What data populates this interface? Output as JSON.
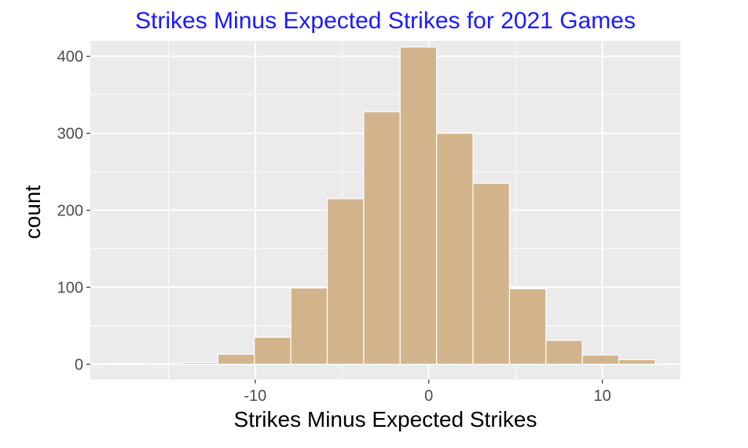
{
  "chart_data": {
    "type": "bar",
    "title": "Strikes Minus Expected Strikes for 2021 Games",
    "xlabel": "Strikes Minus Expected Strikes",
    "ylabel": "count",
    "bin_width": 2.1,
    "bins": [
      {
        "start": -18.45,
        "end": -16.35,
        "count": 1
      },
      {
        "start": -16.35,
        "end": -14.25,
        "count": 0
      },
      {
        "start": -14.25,
        "end": -12.15,
        "count": 2
      },
      {
        "start": -12.15,
        "end": -10.05,
        "count": 13
      },
      {
        "start": -10.05,
        "end": -7.95,
        "count": 35
      },
      {
        "start": -7.95,
        "end": -5.85,
        "count": 99
      },
      {
        "start": -5.85,
        "end": -3.75,
        "count": 215
      },
      {
        "start": -3.75,
        "end": -1.65,
        "count": 328
      },
      {
        "start": -1.65,
        "end": 0.45,
        "count": 412
      },
      {
        "start": 0.45,
        "end": 2.55,
        "count": 300
      },
      {
        "start": 2.55,
        "end": 4.65,
        "count": 235
      },
      {
        "start": 4.65,
        "end": 6.75,
        "count": 98
      },
      {
        "start": 6.75,
        "end": 8.85,
        "count": 31
      },
      {
        "start": 8.85,
        "end": 10.95,
        "count": 12
      },
      {
        "start": 10.95,
        "end": 13.05,
        "count": 6
      }
    ],
    "xlim": [
      -19.5,
      14.5
    ],
    "ylim": [
      -20,
      420
    ],
    "x_ticks": [
      -10,
      0,
      10
    ],
    "x_tick_labels": [
      "-10",
      "0",
      "10"
    ],
    "y_ticks": [
      0,
      100,
      200,
      300,
      400
    ],
    "y_tick_labels": [
      "0",
      "100",
      "200",
      "300",
      "400"
    ],
    "grid": true,
    "colors": {
      "panel_background": "#ebebeb",
      "grid_major": "#ffffff",
      "bar_fill": "#d2b48c",
      "bar_outline": "#ffffff",
      "title_color": "#1a1aff",
      "tick_color": "#4d4d4d"
    }
  }
}
